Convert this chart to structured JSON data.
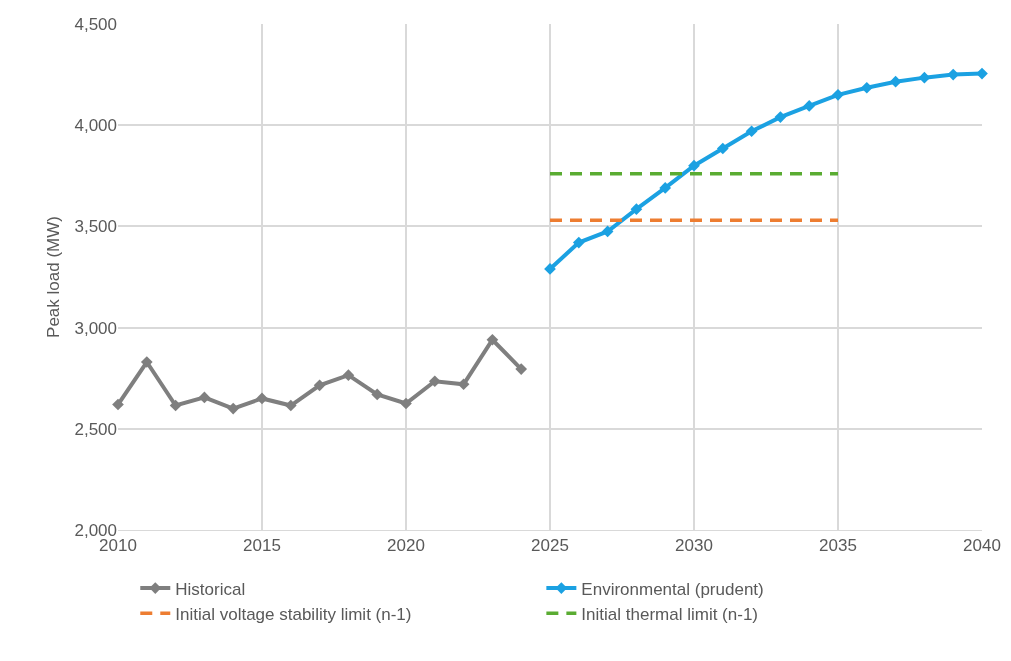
{
  "chart_data": {
    "type": "line",
    "ylabel": "Peak load (MW)",
    "xlim": [
      2010,
      2040
    ],
    "xticks": [
      2010,
      2015,
      2020,
      2025,
      2030,
      2035,
      2040
    ],
    "ylim": [
      2000,
      4500
    ],
    "yticks": [
      {
        "value": 2000,
        "label": "2,000"
      },
      {
        "value": 2500,
        "label": "2,500"
      },
      {
        "value": 3000,
        "label": "3,000"
      },
      {
        "value": 3500,
        "label": "3,500"
      },
      {
        "value": 4000,
        "label": "4,000"
      },
      {
        "value": 4500,
        "label": "4,500"
      }
    ],
    "grid": true,
    "legend": "bottom",
    "marker": "diamond",
    "line_style": "solid",
    "series": [
      {
        "name": "Historical",
        "color": "#7f7f7f",
        "x": [
          2010,
          2011,
          2012,
          2013,
          2014,
          2015,
          2016,
          2017,
          2018,
          2019,
          2020,
          2021,
          2022,
          2023,
          2024
        ],
        "values": [
          2620,
          2830,
          2615,
          2655,
          2600,
          2650,
          2615,
          2715,
          2765,
          2670,
          2625,
          2735,
          2720,
          2940,
          2795
        ]
      },
      {
        "name": "Environmental (prudent)",
        "color": "#1ba1e2",
        "x": [
          2025,
          2026,
          2027,
          2028,
          2029,
          2030,
          2031,
          2032,
          2033,
          2034,
          2035,
          2036,
          2037,
          2038,
          2039,
          2040
        ],
        "values": [
          3290,
          3420,
          3475,
          3585,
          3690,
          3800,
          3885,
          3970,
          4040,
          4095,
          4150,
          4185,
          4215,
          4235,
          4250,
          4255
        ]
      },
      {
        "name": "Initial voltage stability limit (n-1)",
        "color": "#ed7d31",
        "x": [
          2025,
          2035
        ],
        "values": [
          3530,
          3530
        ],
        "line_style": "dashed",
        "marker": "none"
      },
      {
        "name": "Initial thermal limit (n-1)",
        "color": "#5aac32",
        "x": [
          2025,
          2035
        ],
        "values": [
          3760,
          3760
        ],
        "line_style": "dashed",
        "marker": "none"
      }
    ]
  }
}
